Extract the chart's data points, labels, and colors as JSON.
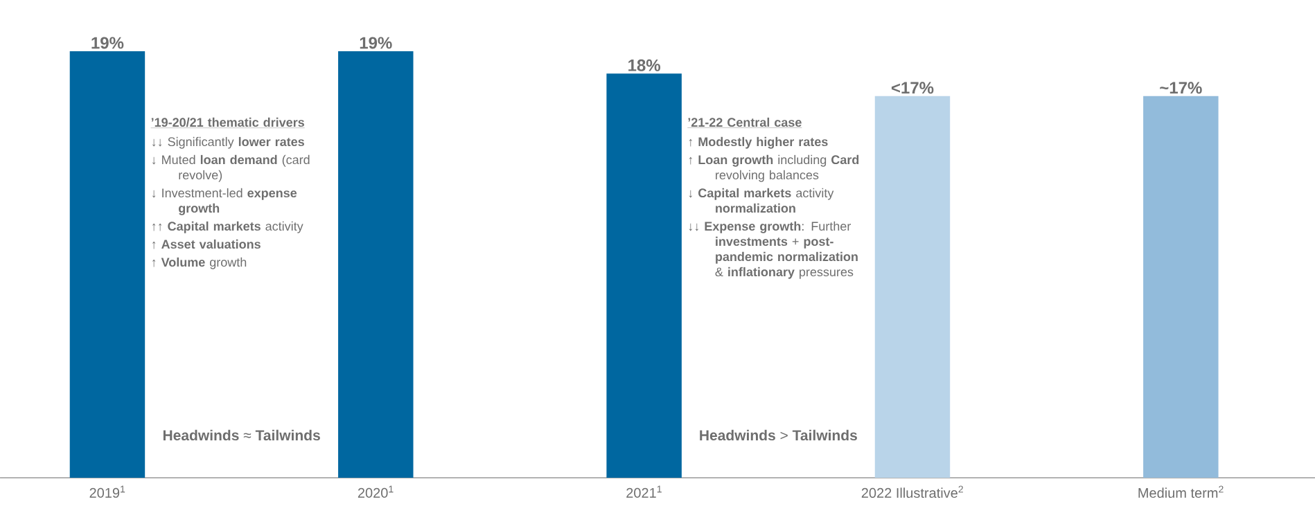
{
  "chart_data": {
    "type": "bar",
    "categories": [
      "2019$^{1}$",
      "2020$^{1}$",
      "2021$^{1}$",
      "2022 Illustrative$^{2}$",
      "Medium term$^{2}$"
    ],
    "values": [
      19,
      19,
      18,
      17,
      17
    ],
    "value_labels": [
      "19%",
      "19%",
      "18%",
      "<17%",
      "~17%"
    ],
    "colors": [
      "#0067a0",
      "#0067a0",
      "#0067a0",
      "#b9d4e9",
      "#92bbdb"
    ],
    "annotations": [
      "’19-20/21 thematic drivers",
      "↓↓ Significantly **lower rates**",
      "↓ Muted **loan demand** (card revolve)",
      "↓ Investment-led **expense growth**",
      "↑↑ **Capital markets** activity",
      "↑ **Asset valuations**",
      "↑ **Volume** growth",
      "**Headwinds** ≈ **Tailwinds**",
      "’21-22 Central case",
      "↑ **Modestly higher rates**",
      "↑ **Loan growth** including **Card** revolving balances",
      "↓ **Capital markets** activity **normalization**",
      "↓↓ **Expense growth**: Further **investments** + **post-pandemic normalization** & **inflationary** pressures",
      "**Headwinds** > **Tailwinds**"
    ]
  }
}
